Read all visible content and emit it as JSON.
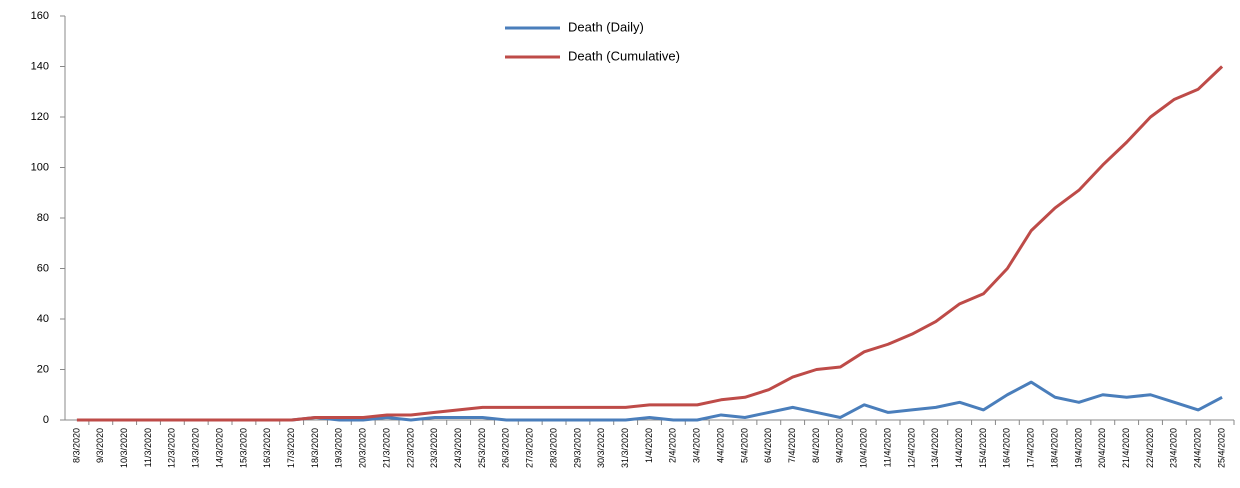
{
  "chart_data": {
    "type": "line",
    "categories": [
      "8/3/2020",
      "9/3/2020",
      "10/3/2020",
      "11/3/2020",
      "12/3/2020",
      "13/3/2020",
      "14/3/2020",
      "15/3/2020",
      "16/3/2020",
      "17/3/2020",
      "18/3/2020",
      "19/3/2020",
      "20/3/2020",
      "21/3/2020",
      "22/3/2020",
      "23/3/2020",
      "24/3/2020",
      "25/3/2020",
      "26/3/2020",
      "27/3/2020",
      "28/3/2020",
      "29/3/2020",
      "30/3/2020",
      "31/3/2020",
      "1/4/2020",
      "2/4/2020",
      "3/4/2020",
      "4/4/2020",
      "5/4/2020",
      "6/4/2020",
      "7/4/2020",
      "8/4/2020",
      "9/4/2020",
      "10/4/2020",
      "11/4/2020",
      "12/4/2020",
      "13/4/2020",
      "14/4/2020",
      "15/4/2020",
      "16/4/2020",
      "17/4/2020",
      "18/4/2020",
      "19/4/2020",
      "20/4/2020",
      "21/4/2020",
      "22/4/2020",
      "23/4/2020",
      "24/4/2020",
      "25/4/2020"
    ],
    "series": [
      {
        "name": "Death (Daily)",
        "color": "#4a7ebb",
        "values": [
          0,
          0,
          0,
          0,
          0,
          0,
          0,
          0,
          0,
          0,
          1,
          0,
          0,
          1,
          0,
          1,
          1,
          1,
          0,
          0,
          0,
          0,
          0,
          0,
          1,
          0,
          0,
          2,
          1,
          3,
          5,
          3,
          1,
          6,
          3,
          4,
          5,
          7,
          4,
          10,
          15,
          9,
          7,
          10,
          9,
          10,
          7,
          4,
          9
        ]
      },
      {
        "name": "Death (Cumulative)",
        "color": "#be4b48",
        "values": [
          0,
          0,
          0,
          0,
          0,
          0,
          0,
          0,
          0,
          0,
          1,
          1,
          1,
          2,
          2,
          3,
          4,
          5,
          5,
          5,
          5,
          5,
          5,
          5,
          6,
          6,
          6,
          8,
          9,
          12,
          17,
          20,
          21,
          27,
          30,
          34,
          39,
          46,
          50,
          60,
          75,
          84,
          91,
          101,
          110,
          120,
          127,
          131,
          140
        ]
      }
    ],
    "ylim": [
      0,
      160
    ],
    "yticks": [
      0,
      20,
      40,
      60,
      80,
      100,
      120,
      140,
      160
    ],
    "legend": "top"
  }
}
